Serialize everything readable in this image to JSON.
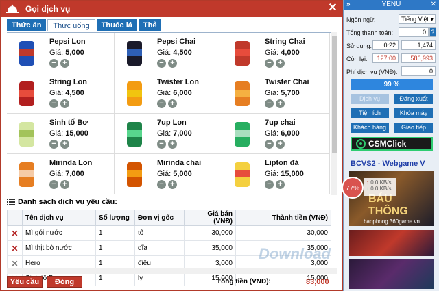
{
  "dialog": {
    "title": "Gọi dịch vụ",
    "close": "✕",
    "tabs": [
      "Thức ăn",
      "Thức uống",
      "Thuốc lá",
      "Thẻ"
    ],
    "active_tab": 1,
    "price_label": "Giá:",
    "items": [
      {
        "name": "Pepsi Lon",
        "price": "5,000",
        "img": "pepsi-can"
      },
      {
        "name": "Pepsi Chai",
        "price": "4,500",
        "img": "pepsi-bottles"
      },
      {
        "name": "String Chai",
        "price": "4,000",
        "img": "sting-bottle"
      },
      {
        "name": "String Lon",
        "price": "4,500",
        "img": "sting-can"
      },
      {
        "name": "Twister Lon",
        "price": "6,000",
        "img": "twister-can"
      },
      {
        "name": "Twister Chai",
        "price": "5,700",
        "img": "twister-bottle"
      },
      {
        "name": "Sinh tố Bơ",
        "price": "15,000",
        "img": "avocado-smoothie"
      },
      {
        "name": "7up Lon",
        "price": "7,000",
        "img": "7up-can"
      },
      {
        "name": "7up chai",
        "price": "6,000",
        "img": "7up-bottle"
      },
      {
        "name": "Mirinda Lon",
        "price": "7,000",
        "img": "mirinda-can"
      },
      {
        "name": "Mirinda chai",
        "price": "5,000",
        "img": "mirinda-bottles"
      },
      {
        "name": "Lipton đá",
        "price": "15,000",
        "img": "iced-tea"
      }
    ],
    "list_title": "Danh sách dịch vụ yêu cầu:",
    "columns": [
      "Tên dịch vụ",
      "Số lượng",
      "Đơn vị gốc",
      "Giá bán (VNĐ)",
      "Thành tiền (VNĐ)"
    ],
    "rows": [
      {
        "name": "Mì gói nước",
        "qty": "1",
        "unit": "tô",
        "price": "30,000",
        "total": "30,000",
        "active": true
      },
      {
        "name": "Mì thịt bò nước",
        "qty": "1",
        "unit": "dĩa",
        "price": "35,000",
        "total": "35,000",
        "active": true
      },
      {
        "name": "Hero",
        "qty": "1",
        "unit": "điếu",
        "price": "3,000",
        "total": "3,000",
        "active": false
      },
      {
        "name": "Sinh tố Bơ",
        "qty": "1",
        "unit": "ly",
        "price": "15,000",
        "total": "15,000",
        "active": false
      }
    ],
    "request_button": "Yêu cầu",
    "close_button": "Đóng",
    "total_label": "Tổng tiền (VNĐ):",
    "total_value": "83,000"
  },
  "side": {
    "title": "YENU",
    "arrow": "»",
    "close": "✕",
    "language_label": "Ngôn ngữ:",
    "language_value": "Tiếng Việt",
    "total_pay_label": "Tổng thanh toán:",
    "total_pay_value": "0",
    "used_label": "Sử dụng:",
    "used_time": "0:22",
    "used_amount": "1,474",
    "remaining_label": "Còn lại:",
    "remaining_time": "127:00",
    "remaining_amount": "586,993",
    "service_fee_label": "Phí dịch vụ (VNĐ):",
    "service_fee_value": "0",
    "progress": "99 %",
    "buttons": [
      "Dịch vụ",
      "Đăng xuất",
      "Tiện ích",
      "Khóa máy",
      "Khách hàng",
      "Giao tiếp"
    ],
    "csm_label": "CSMClick",
    "ad_title": "BCVS2 - Webgame V",
    "ad_text": "BÁU THÔNG",
    "ad_url": "baophong.360game.vn",
    "cpu_percent": "77%",
    "net_up": "0.0 KB/s",
    "net_down": "0.0 KB/s",
    "watermark": "Download"
  }
}
